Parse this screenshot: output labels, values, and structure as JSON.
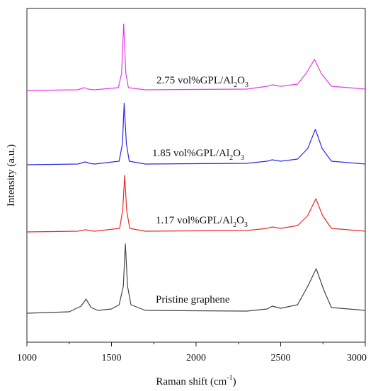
{
  "chart_data": {
    "type": "line",
    "xlabel": "Raman shift (cm",
    "xlabel_sup": "-1",
    "xlabel_close": ")",
    "ylabel": "Intensity (a.u.)",
    "xlim": [
      1000,
      3000
    ],
    "xticks": [
      "1000",
      "1500",
      "2000",
      "2500",
      "3000"
    ],
    "grid": false,
    "legend": "none",
    "series": [
      {
        "label_parts": [
          "2.75 vol%GPL/Al",
          "2",
          "O",
          "3"
        ],
        "color": "#e838e8",
        "offset": 3,
        "points": [
          [
            1000,
            0.06
          ],
          [
            1300,
            0.07
          ],
          [
            1340,
            0.1
          ],
          [
            1360,
            0.08
          ],
          [
            1400,
            0.07
          ],
          [
            1540,
            0.1
          ],
          [
            1560,
            0.3
          ],
          [
            1572,
            1.0
          ],
          [
            1585,
            0.3
          ],
          [
            1600,
            0.1
          ],
          [
            1700,
            0.07
          ],
          [
            2300,
            0.08
          ],
          [
            2420,
            0.12
          ],
          [
            2450,
            0.14
          ],
          [
            2500,
            0.12
          ],
          [
            2600,
            0.15
          ],
          [
            2650,
            0.3
          ],
          [
            2700,
            0.5
          ],
          [
            2740,
            0.3
          ],
          [
            2800,
            0.12
          ],
          [
            3000,
            0.08
          ]
        ]
      },
      {
        "label_parts": [
          "1.85 vol%GPL/Al",
          "2",
          "O",
          "3"
        ],
        "color": "#2a2ae8",
        "offset": 2,
        "points": [
          [
            1000,
            0.05
          ],
          [
            1300,
            0.06
          ],
          [
            1345,
            0.09
          ],
          [
            1370,
            0.07
          ],
          [
            1400,
            0.06
          ],
          [
            1545,
            0.1
          ],
          [
            1565,
            0.35
          ],
          [
            1575,
            0.92
          ],
          [
            1588,
            0.35
          ],
          [
            1605,
            0.1
          ],
          [
            1700,
            0.06
          ],
          [
            2300,
            0.07
          ],
          [
            2420,
            0.1
          ],
          [
            2450,
            0.12
          ],
          [
            2500,
            0.1
          ],
          [
            2600,
            0.13
          ],
          [
            2660,
            0.28
          ],
          [
            2705,
            0.55
          ],
          [
            2745,
            0.28
          ],
          [
            2800,
            0.1
          ],
          [
            3000,
            0.06
          ]
        ]
      },
      {
        "label_parts": [
          "1.17 vol%GPL/Al",
          "2",
          "O",
          "3"
        ],
        "color": "#e82a2a",
        "offset": 1,
        "points": [
          [
            1000,
            0.05
          ],
          [
            1300,
            0.06
          ],
          [
            1345,
            0.08
          ],
          [
            1370,
            0.07
          ],
          [
            1400,
            0.06
          ],
          [
            1548,
            0.1
          ],
          [
            1566,
            0.35
          ],
          [
            1578,
            0.85
          ],
          [
            1590,
            0.35
          ],
          [
            1608,
            0.1
          ],
          [
            1700,
            0.06
          ],
          [
            2300,
            0.07
          ],
          [
            2420,
            0.1
          ],
          [
            2450,
            0.12
          ],
          [
            2500,
            0.1
          ],
          [
            2600,
            0.14
          ],
          [
            2660,
            0.28
          ],
          [
            2708,
            0.52
          ],
          [
            2748,
            0.28
          ],
          [
            2800,
            0.1
          ],
          [
            3000,
            0.06
          ]
        ]
      },
      {
        "label_parts": [
          "Pristine graphene",
          "",
          "",
          ""
        ],
        "color": "#444444",
        "offset": 0,
        "points": [
          [
            1000,
            0.02
          ],
          [
            1250,
            0.04
          ],
          [
            1320,
            0.12
          ],
          [
            1350,
            0.22
          ],
          [
            1380,
            0.1
          ],
          [
            1420,
            0.06
          ],
          [
            1500,
            0.08
          ],
          [
            1545,
            0.14
          ],
          [
            1570,
            0.4
          ],
          [
            1582,
            1.0
          ],
          [
            1595,
            0.4
          ],
          [
            1615,
            0.14
          ],
          [
            1700,
            0.06
          ],
          [
            2300,
            0.05
          ],
          [
            2420,
            0.08
          ],
          [
            2450,
            0.12
          ],
          [
            2500,
            0.09
          ],
          [
            2600,
            0.14
          ],
          [
            2660,
            0.4
          ],
          [
            2710,
            0.65
          ],
          [
            2755,
            0.35
          ],
          [
            2800,
            0.1
          ],
          [
            3000,
            0.06
          ]
        ]
      }
    ]
  }
}
